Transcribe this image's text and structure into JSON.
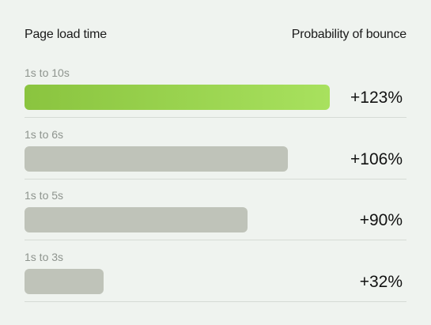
{
  "chart_data": {
    "type": "bar",
    "orientation": "horizontal",
    "header_left": "Page load time",
    "header_right": "Probability of bounce",
    "categories": [
      "1s to 10s",
      "1s to 6s",
      "1s to 5s",
      "1s to 3s"
    ],
    "values": [
      123,
      106,
      90,
      32
    ],
    "value_labels": [
      "+123%",
      "+106%",
      "+90%",
      "+32%"
    ],
    "highlight_index": 0,
    "colors": {
      "highlight_start": "#8ac43f",
      "highlight_end": "#a8e15e",
      "muted": "#bfc3b9"
    }
  }
}
